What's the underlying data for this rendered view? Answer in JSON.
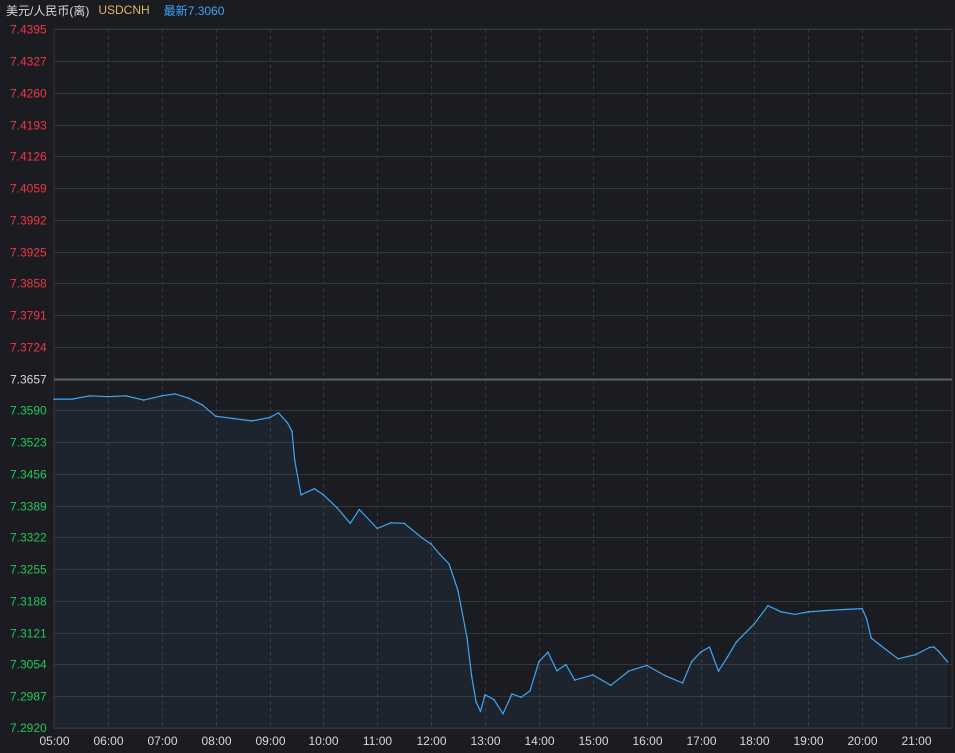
{
  "header": {
    "name": "美元/人民币(离)",
    "symbol": "USDCNH",
    "last_label": "最新",
    "last_value": "7.3060"
  },
  "colors": {
    "background": "#1b1c21",
    "grid": "#33363d",
    "line": "#3ea6f0",
    "up": "#f23645",
    "down": "#1fc95b",
    "base": "#d8d8d8",
    "axis_text": "#d8d8d8"
  },
  "chart_data": {
    "type": "area",
    "title": "",
    "xlabel": "",
    "ylabel": "",
    "base_value": 7.3657,
    "ylim": [
      7.292,
      7.4395
    ],
    "xlim": [
      "05:00",
      "21:40"
    ],
    "y_ticks": [
      "7.4395",
      "7.4327",
      "7.4260",
      "7.4193",
      "7.4126",
      "7.4059",
      "7.3992",
      "7.3925",
      "7.3858",
      "7.3791",
      "7.3724",
      "7.3657",
      "7.3590",
      "7.3523",
      "7.3456",
      "7.3389",
      "7.3322",
      "7.3255",
      "7.3188",
      "7.3121",
      "7.3054",
      "7.2987",
      "7.2920"
    ],
    "x_ticks": [
      "05:00",
      "06:00",
      "07:00",
      "08:00",
      "09:00",
      "10:00",
      "11:00",
      "12:00",
      "13:00",
      "14:00",
      "15:00",
      "16:00",
      "17:00",
      "18:00",
      "19:00",
      "20:00",
      "21:00"
    ],
    "series": [
      {
        "x": [
          "05:00",
          "05:20",
          "05:40",
          "06:00",
          "06:20",
          "06:40",
          "07:00",
          "07:15",
          "07:30",
          "07:45",
          "08:00",
          "08:20",
          "08:40",
          "09:00",
          "09:10",
          "09:20",
          "09:25",
          "09:28",
          "09:35",
          "09:50",
          "10:00",
          "10:15",
          "10:30",
          "10:40",
          "11:00",
          "11:15",
          "11:30",
          "11:50",
          "12:00",
          "12:10",
          "12:20",
          "12:30",
          "12:40",
          "12:45",
          "12:50",
          "12:55",
          "13:00",
          "13:10",
          "13:20",
          "13:30",
          "13:40",
          "13:50",
          "14:00",
          "14:10",
          "14:20",
          "14:30",
          "14:40",
          "15:00",
          "15:20",
          "15:40",
          "16:00",
          "16:20",
          "16:40",
          "16:50",
          "17:00",
          "17:10",
          "17:20",
          "17:30",
          "17:40",
          "17:50",
          "18:00",
          "18:15",
          "18:30",
          "18:45",
          "19:00",
          "19:20",
          "19:40",
          "20:00",
          "20:05",
          "20:10",
          "20:20",
          "20:40",
          "21:00",
          "21:15",
          "21:20",
          "21:25",
          "21:35"
        ],
        "values": [
          7.3614,
          7.3614,
          7.3621,
          7.3619,
          7.3621,
          7.3612,
          7.3621,
          7.3625,
          7.3616,
          7.3602,
          7.3578,
          7.3573,
          7.3568,
          7.3575,
          7.3585,
          7.3564,
          7.3546,
          7.3485,
          7.3412,
          7.3425,
          7.3412,
          7.3385,
          7.3352,
          7.3381,
          7.3341,
          7.3353,
          7.3352,
          7.3321,
          7.3308,
          7.3286,
          7.3266,
          7.3209,
          7.311,
          7.303,
          7.2975,
          7.2955,
          7.299,
          7.298,
          7.295,
          7.2992,
          7.2985,
          7.2998,
          7.306,
          7.308,
          7.3041,
          7.3054,
          7.3021,
          7.3032,
          7.301,
          7.304,
          7.3052,
          7.3031,
          7.3015,
          7.306,
          7.308,
          7.3091,
          7.304,
          7.307,
          7.3102,
          7.3121,
          7.314,
          7.3178,
          7.3165,
          7.316,
          7.3165,
          7.3168,
          7.317,
          7.3172,
          7.315,
          7.311,
          7.3095,
          7.3066,
          7.3075,
          7.309,
          7.3091,
          7.3082,
          7.306
        ]
      }
    ]
  }
}
